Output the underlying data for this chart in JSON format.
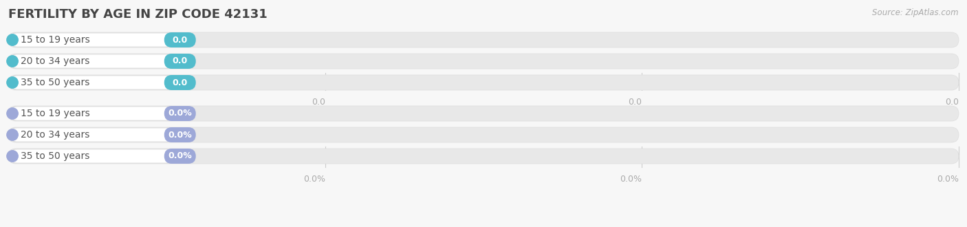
{
  "title": "FERTILITY BY AGE IN ZIP CODE 42131",
  "source": "Source: ZipAtlas.com",
  "categories": [
    "15 to 19 years",
    "20 to 34 years",
    "35 to 50 years"
  ],
  "section1_labels": [
    "0.0",
    "0.0",
    "0.0"
  ],
  "section1_bar_color": "#52bccc",
  "section1_dot_color": "#52bccc",
  "section1_tick_labels": [
    "0.0",
    "0.0",
    "0.0"
  ],
  "section2_labels": [
    "0.0%",
    "0.0%",
    "0.0%"
  ],
  "section2_bar_color": "#9da8d8",
  "section2_dot_color": "#9da8d8",
  "section2_tick_labels": [
    "0.0%",
    "0.0%",
    "0.0%"
  ],
  "bg_color": "#f7f7f7",
  "track_color": "#e8e8e8",
  "track_edge_color": "#dddddd",
  "white_pill_color": "#ffffff",
  "white_pill_edge": "#d8d8d8",
  "title_color": "#444444",
  "source_color": "#aaaaaa",
  "tick_color": "#aaaaaa",
  "tick_line_color": "#cccccc",
  "cat_text_color": "#555555",
  "title_fontsize": 13,
  "source_fontsize": 8.5,
  "cat_fontsize": 10,
  "val_fontsize": 9,
  "tick_fontsize": 9
}
